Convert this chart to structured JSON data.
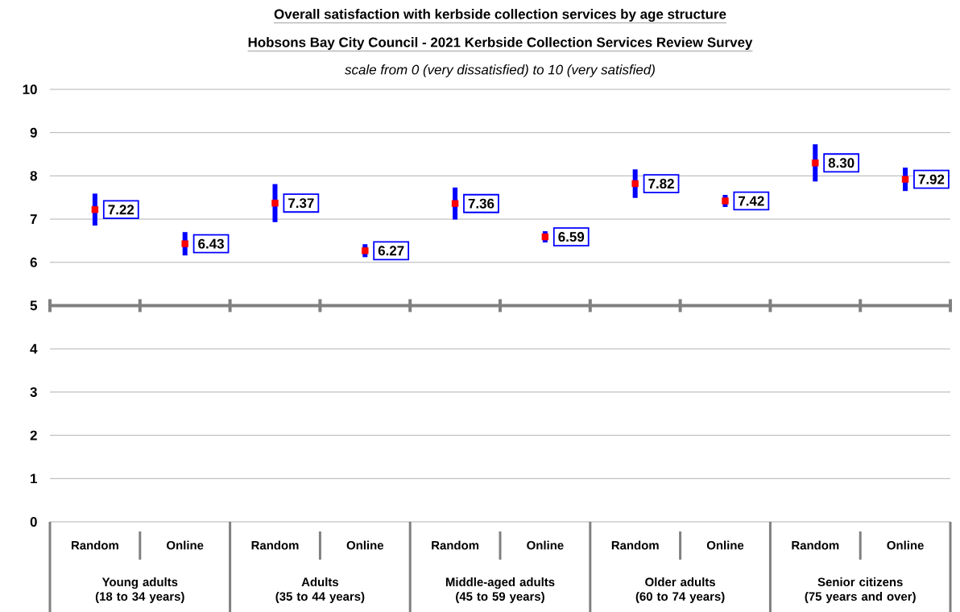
{
  "chart_data": {
    "type": "scatter",
    "title": "Overall satisfaction with kerbside collection services by age structure",
    "subtitle": "Hobsons Bay City Council - 2021 Kerbside Collection Services Review Survey",
    "annotations": [
      "scale from 0 (very dissatisfied) to 10 (very satisfied)",
      "Young adults (18 to 34 years)",
      "Adults (35 to 44 years)",
      "Middle-aged adults (45 to 59 years)",
      "Older adults (60 to 74 years)",
      "Senior citizens (75 years and over)"
    ],
    "categories": [
      "Random",
      "Online",
      "Random",
      "Online",
      "Random",
      "Online",
      "Random",
      "Online",
      "Random",
      "Online"
    ],
    "values": [
      7.22,
      6.43,
      7.37,
      6.27,
      7.36,
      6.59,
      7.82,
      7.42,
      8.3,
      7.92
    ],
    "errors": [
      0.37,
      0.27,
      0.44,
      0.15,
      0.37,
      0.13,
      0.33,
      0.14,
      0.43,
      0.27
    ],
    "value_labels": [
      "7.22",
      "6.43",
      "7.37",
      "6.27",
      "7.36",
      "6.59",
      "7.82",
      "7.42",
      "8.30",
      "7.92"
    ],
    "color": "#ff0000",
    "marker": "square",
    "ylim": [
      0,
      10
    ],
    "yticks": [
      0,
      1,
      2,
      3,
      4,
      5,
      6,
      7,
      8,
      9,
      10
    ],
    "grid": "y",
    "ref_lines": [
      {
        "axis": "y",
        "value": 5,
        "color": "#808080"
      }
    ]
  }
}
